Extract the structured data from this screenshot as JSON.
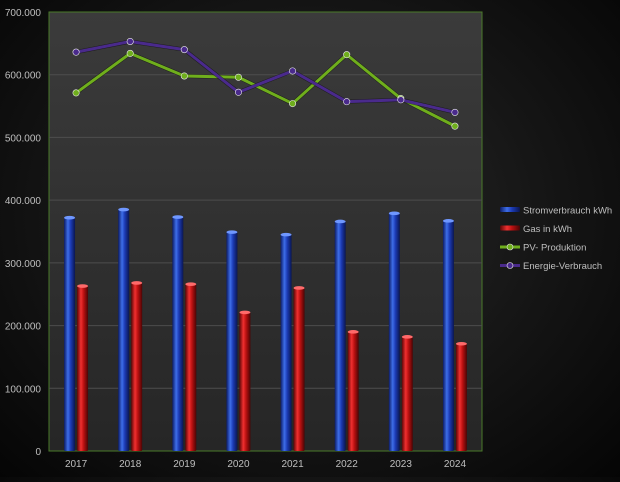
{
  "chart_data": {
    "type": "bar",
    "categories": [
      "2017",
      "2018",
      "2019",
      "2020",
      "2021",
      "2022",
      "2023",
      "2024"
    ],
    "ylim": [
      0,
      700000
    ],
    "yticks": [
      "0",
      "100.000",
      "200.000",
      "300.000",
      "400.000",
      "500.000",
      "600.000",
      "700.000"
    ],
    "grid": true,
    "legend_position": "right",
    "series": [
      {
        "name": "Stromverbrauch kWh",
        "kind": "bar",
        "color": "#1f3fbf",
        "values": [
          372000,
          385000,
          373000,
          349000,
          345000,
          366000,
          379000,
          367000
        ]
      },
      {
        "name": "Gas in kWh",
        "kind": "bar",
        "color": "#d11818",
        "values": [
          263000,
          268000,
          266000,
          221000,
          260000,
          190000,
          182000,
          171000
        ]
      },
      {
        "name": "PV- Produktion",
        "kind": "line",
        "color": "#6fae1c",
        "values": [
          571000,
          634000,
          598000,
          596000,
          554000,
          632000,
          562000,
          518000
        ]
      },
      {
        "name": "Energie-Verbrauch",
        "kind": "line",
        "color": "#4a2a8c",
        "values": [
          636000,
          653000,
          640000,
          572000,
          606000,
          557000,
          560000,
          540000
        ]
      }
    ]
  }
}
